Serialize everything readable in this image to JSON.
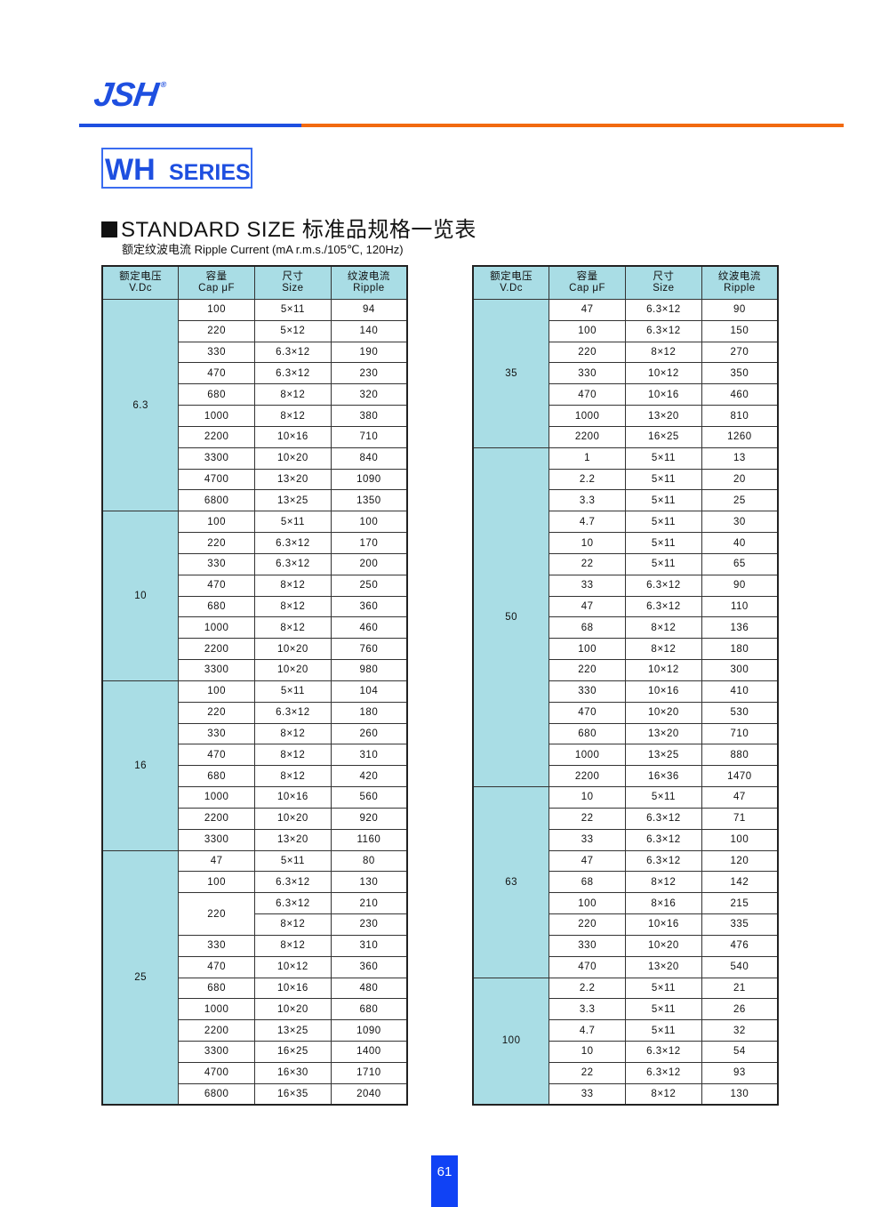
{
  "brand": {
    "logo_text": "JSH",
    "registered": "®",
    "colors": {
      "blue": "#1e4fe0",
      "orange": "#f26a10",
      "table_fill": "#a9dde5"
    }
  },
  "series": {
    "main": "WH",
    "suffix": "SERIES"
  },
  "heading": {
    "title": "STANDARD SIZE 标准品规格一览表",
    "subtitle": "额定纹波电流  Ripple Current (mA r.m.s./105℃, 120Hz)"
  },
  "table_headers": [
    {
      "cn": "额定电压",
      "en": "V.Dc"
    },
    {
      "cn": "容量",
      "en": "Cap  μF"
    },
    {
      "cn": "尺寸",
      "en": "Size"
    },
    {
      "cn": "纹波电流",
      "en": "Ripple"
    }
  ],
  "tables": {
    "left": [
      {
        "voltage": "6.3",
        "rows": [
          {
            "cap": "100",
            "items": [
              {
                "size": "5×11",
                "ripple": "94"
              }
            ]
          },
          {
            "cap": "220",
            "items": [
              {
                "size": "5×12",
                "ripple": "140"
              }
            ]
          },
          {
            "cap": "330",
            "items": [
              {
                "size": "6.3×12",
                "ripple": "190"
              }
            ]
          },
          {
            "cap": "470",
            "items": [
              {
                "size": "6.3×12",
                "ripple": "230"
              }
            ]
          },
          {
            "cap": "680",
            "items": [
              {
                "size": "8×12",
                "ripple": "320"
              }
            ]
          },
          {
            "cap": "1000",
            "items": [
              {
                "size": "8×12",
                "ripple": "380"
              }
            ]
          },
          {
            "cap": "2200",
            "items": [
              {
                "size": "10×16",
                "ripple": "710"
              }
            ]
          },
          {
            "cap": "3300",
            "items": [
              {
                "size": "10×20",
                "ripple": "840"
              }
            ]
          },
          {
            "cap": "4700",
            "items": [
              {
                "size": "13×20",
                "ripple": "1090"
              }
            ]
          },
          {
            "cap": "6800",
            "items": [
              {
                "size": "13×25",
                "ripple": "1350"
              }
            ]
          }
        ]
      },
      {
        "voltage": "10",
        "rows": [
          {
            "cap": "100",
            "items": [
              {
                "size": "5×11",
                "ripple": "100"
              }
            ]
          },
          {
            "cap": "220",
            "items": [
              {
                "size": "6.3×12",
                "ripple": "170"
              }
            ]
          },
          {
            "cap": "330",
            "items": [
              {
                "size": "6.3×12",
                "ripple": "200"
              }
            ]
          },
          {
            "cap": "470",
            "items": [
              {
                "size": "8×12",
                "ripple": "250"
              }
            ]
          },
          {
            "cap": "680",
            "items": [
              {
                "size": "8×12",
                "ripple": "360"
              }
            ]
          },
          {
            "cap": "1000",
            "items": [
              {
                "size": "8×12",
                "ripple": "460"
              }
            ]
          },
          {
            "cap": "2200",
            "items": [
              {
                "size": "10×20",
                "ripple": "760"
              }
            ]
          },
          {
            "cap": "3300",
            "items": [
              {
                "size": "10×20",
                "ripple": "980"
              }
            ]
          }
        ]
      },
      {
        "voltage": "16",
        "rows": [
          {
            "cap": "100",
            "items": [
              {
                "size": "5×11",
                "ripple": "104"
              }
            ]
          },
          {
            "cap": "220",
            "items": [
              {
                "size": "6.3×12",
                "ripple": "180"
              }
            ]
          },
          {
            "cap": "330",
            "items": [
              {
                "size": "8×12",
                "ripple": "260"
              }
            ]
          },
          {
            "cap": "470",
            "items": [
              {
                "size": "8×12",
                "ripple": "310"
              }
            ]
          },
          {
            "cap": "680",
            "items": [
              {
                "size": "8×12",
                "ripple": "420"
              }
            ]
          },
          {
            "cap": "1000",
            "items": [
              {
                "size": "10×16",
                "ripple": "560"
              }
            ]
          },
          {
            "cap": "2200",
            "items": [
              {
                "size": "10×20",
                "ripple": "920"
              }
            ]
          },
          {
            "cap": "3300",
            "items": [
              {
                "size": "13×20",
                "ripple": "1160"
              }
            ]
          }
        ]
      },
      {
        "voltage": "25",
        "rows": [
          {
            "cap": "47",
            "items": [
              {
                "size": "5×11",
                "ripple": "80"
              }
            ]
          },
          {
            "cap": "100",
            "items": [
              {
                "size": "6.3×12",
                "ripple": "130"
              }
            ]
          },
          {
            "cap": "220",
            "items": [
              {
                "size": "6.3×12",
                "ripple": "210"
              },
              {
                "size": "8×12",
                "ripple": "230"
              }
            ]
          },
          {
            "cap": "330",
            "items": [
              {
                "size": "8×12",
                "ripple": "310"
              }
            ]
          },
          {
            "cap": "470",
            "items": [
              {
                "size": "10×12",
                "ripple": "360"
              }
            ]
          },
          {
            "cap": "680",
            "items": [
              {
                "size": "10×16",
                "ripple": "480"
              }
            ]
          },
          {
            "cap": "1000",
            "items": [
              {
                "size": "10×20",
                "ripple": "680"
              }
            ]
          },
          {
            "cap": "2200",
            "items": [
              {
                "size": "13×25",
                "ripple": "1090"
              }
            ]
          },
          {
            "cap": "3300",
            "items": [
              {
                "size": "16×25",
                "ripple": "1400"
              }
            ]
          },
          {
            "cap": "4700",
            "items": [
              {
                "size": "16×30",
                "ripple": "1710"
              }
            ]
          },
          {
            "cap": "6800",
            "items": [
              {
                "size": "16×35",
                "ripple": "2040"
              }
            ]
          }
        ]
      }
    ],
    "right": [
      {
        "voltage": "35",
        "rows": [
          {
            "cap": "47",
            "items": [
              {
                "size": "6.3×12",
                "ripple": "90"
              }
            ]
          },
          {
            "cap": "100",
            "items": [
              {
                "size": "6.3×12",
                "ripple": "150"
              }
            ]
          },
          {
            "cap": "220",
            "items": [
              {
                "size": "8×12",
                "ripple": "270"
              }
            ]
          },
          {
            "cap": "330",
            "items": [
              {
                "size": "10×12",
                "ripple": "350"
              }
            ]
          },
          {
            "cap": "470",
            "items": [
              {
                "size": "10×16",
                "ripple": "460"
              }
            ]
          },
          {
            "cap": "1000",
            "items": [
              {
                "size": "13×20",
                "ripple": "810"
              }
            ]
          },
          {
            "cap": "2200",
            "items": [
              {
                "size": "16×25",
                "ripple": "1260"
              }
            ]
          }
        ]
      },
      {
        "voltage": "50",
        "rows": [
          {
            "cap": "1",
            "items": [
              {
                "size": "5×11",
                "ripple": "13"
              }
            ]
          },
          {
            "cap": "2.2",
            "items": [
              {
                "size": "5×11",
                "ripple": "20"
              }
            ]
          },
          {
            "cap": "3.3",
            "items": [
              {
                "size": "5×11",
                "ripple": "25"
              }
            ]
          },
          {
            "cap": "4.7",
            "items": [
              {
                "size": "5×11",
                "ripple": "30"
              }
            ]
          },
          {
            "cap": "10",
            "items": [
              {
                "size": "5×11",
                "ripple": "40"
              }
            ]
          },
          {
            "cap": "22",
            "items": [
              {
                "size": "5×11",
                "ripple": "65"
              }
            ]
          },
          {
            "cap": "33",
            "items": [
              {
                "size": "6.3×12",
                "ripple": "90"
              }
            ]
          },
          {
            "cap": "47",
            "items": [
              {
                "size": "6.3×12",
                "ripple": "110"
              }
            ]
          },
          {
            "cap": "68",
            "items": [
              {
                "size": "8×12",
                "ripple": "136"
              }
            ]
          },
          {
            "cap": "100",
            "items": [
              {
                "size": "8×12",
                "ripple": "180"
              }
            ]
          },
          {
            "cap": "220",
            "items": [
              {
                "size": "10×12",
                "ripple": "300"
              }
            ]
          },
          {
            "cap": "330",
            "items": [
              {
                "size": "10×16",
                "ripple": "410"
              }
            ]
          },
          {
            "cap": "470",
            "items": [
              {
                "size": "10×20",
                "ripple": "530"
              }
            ]
          },
          {
            "cap": "680",
            "items": [
              {
                "size": "13×20",
                "ripple": "710"
              }
            ]
          },
          {
            "cap": "1000",
            "items": [
              {
                "size": "13×25",
                "ripple": "880"
              }
            ]
          },
          {
            "cap": "2200",
            "items": [
              {
                "size": "16×36",
                "ripple": "1470"
              }
            ]
          }
        ]
      },
      {
        "voltage": "63",
        "rows": [
          {
            "cap": "10",
            "items": [
              {
                "size": "5×11",
                "ripple": "47"
              }
            ]
          },
          {
            "cap": "22",
            "items": [
              {
                "size": "6.3×12",
                "ripple": "71"
              }
            ]
          },
          {
            "cap": "33",
            "items": [
              {
                "size": "6.3×12",
                "ripple": "100"
              }
            ]
          },
          {
            "cap": "47",
            "items": [
              {
                "size": "6.3×12",
                "ripple": "120"
              }
            ]
          },
          {
            "cap": "68",
            "items": [
              {
                "size": "8×12",
                "ripple": "142"
              }
            ]
          },
          {
            "cap": "100",
            "items": [
              {
                "size": "8×16",
                "ripple": "215"
              }
            ]
          },
          {
            "cap": "220",
            "items": [
              {
                "size": "10×16",
                "ripple": "335"
              }
            ]
          },
          {
            "cap": "330",
            "items": [
              {
                "size": "10×20",
                "ripple": "476"
              }
            ]
          },
          {
            "cap": "470",
            "items": [
              {
                "size": "13×20",
                "ripple": "540"
              }
            ]
          }
        ]
      },
      {
        "voltage": "100",
        "rows": [
          {
            "cap": "2.2",
            "items": [
              {
                "size": "5×11",
                "ripple": "21"
              }
            ]
          },
          {
            "cap": "3.3",
            "items": [
              {
                "size": "5×11",
                "ripple": "26"
              }
            ]
          },
          {
            "cap": "4.7",
            "items": [
              {
                "size": "5×11",
                "ripple": "32"
              }
            ]
          },
          {
            "cap": "10",
            "items": [
              {
                "size": "6.3×12",
                "ripple": "54"
              }
            ]
          },
          {
            "cap": "22",
            "items": [
              {
                "size": "6.3×12",
                "ripple": "93"
              }
            ]
          },
          {
            "cap": "33",
            "items": [
              {
                "size": "8×12",
                "ripple": "130"
              }
            ]
          }
        ]
      }
    ]
  },
  "page_number": "61"
}
